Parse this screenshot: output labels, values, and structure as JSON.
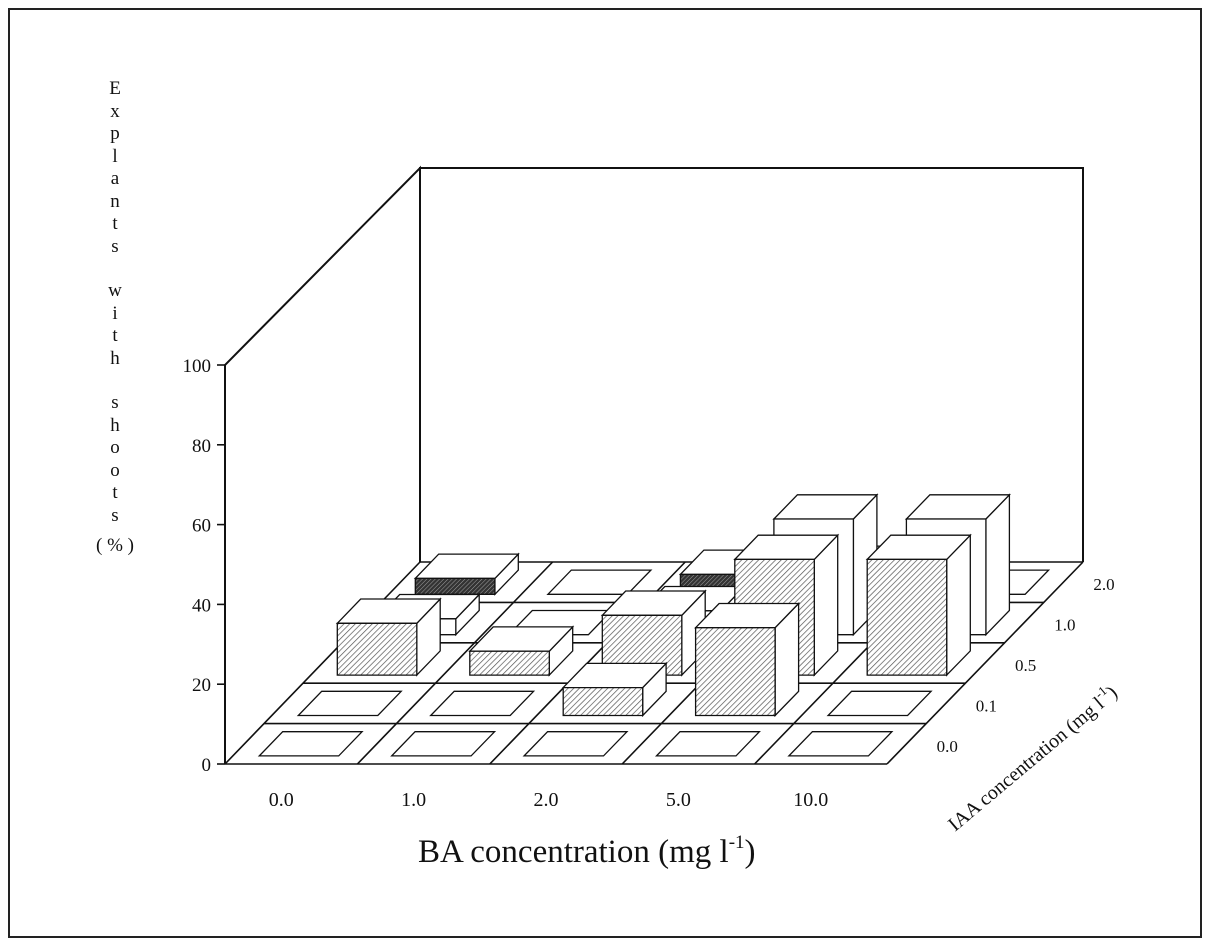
{
  "chart_data": {
    "type": "bar3d",
    "title": "",
    "ylabel_words": [
      "Explants",
      "with",
      "shoots"
    ],
    "ylabel_unit": "( % )",
    "xlabel": "BA concentration (mg l",
    "xlabel_sup": "-1",
    "xlabel_close": ")",
    "zlabel": "IAA concentration (mg l",
    "zlabel_sup": "-1",
    "zlabel_close": ")",
    "x_categories": [
      "0.0",
      "1.0",
      "2.0",
      "5.0",
      "10.0"
    ],
    "z_categories": [
      "0.0",
      "0.1",
      "0.5",
      "1.0",
      "2.0"
    ],
    "yticks": [
      "0",
      "20",
      "40",
      "60",
      "80",
      "100"
    ],
    "ylim": [
      0,
      100
    ],
    "fills": {
      "0.0": "#000000",
      "0.1": "#d8d8d8",
      "0.5": "#d8d8d8",
      "1.0": "#ffffff",
      "2.0": "#666666"
    },
    "values": [
      [
        0,
        0,
        0,
        0,
        0
      ],
      [
        0,
        0,
        7,
        22,
        0
      ],
      [
        13,
        6,
        15,
        29,
        29
      ],
      [
        4,
        0,
        6,
        29,
        29
      ],
      [
        4,
        0,
        5,
        6,
        0
      ]
    ]
  }
}
